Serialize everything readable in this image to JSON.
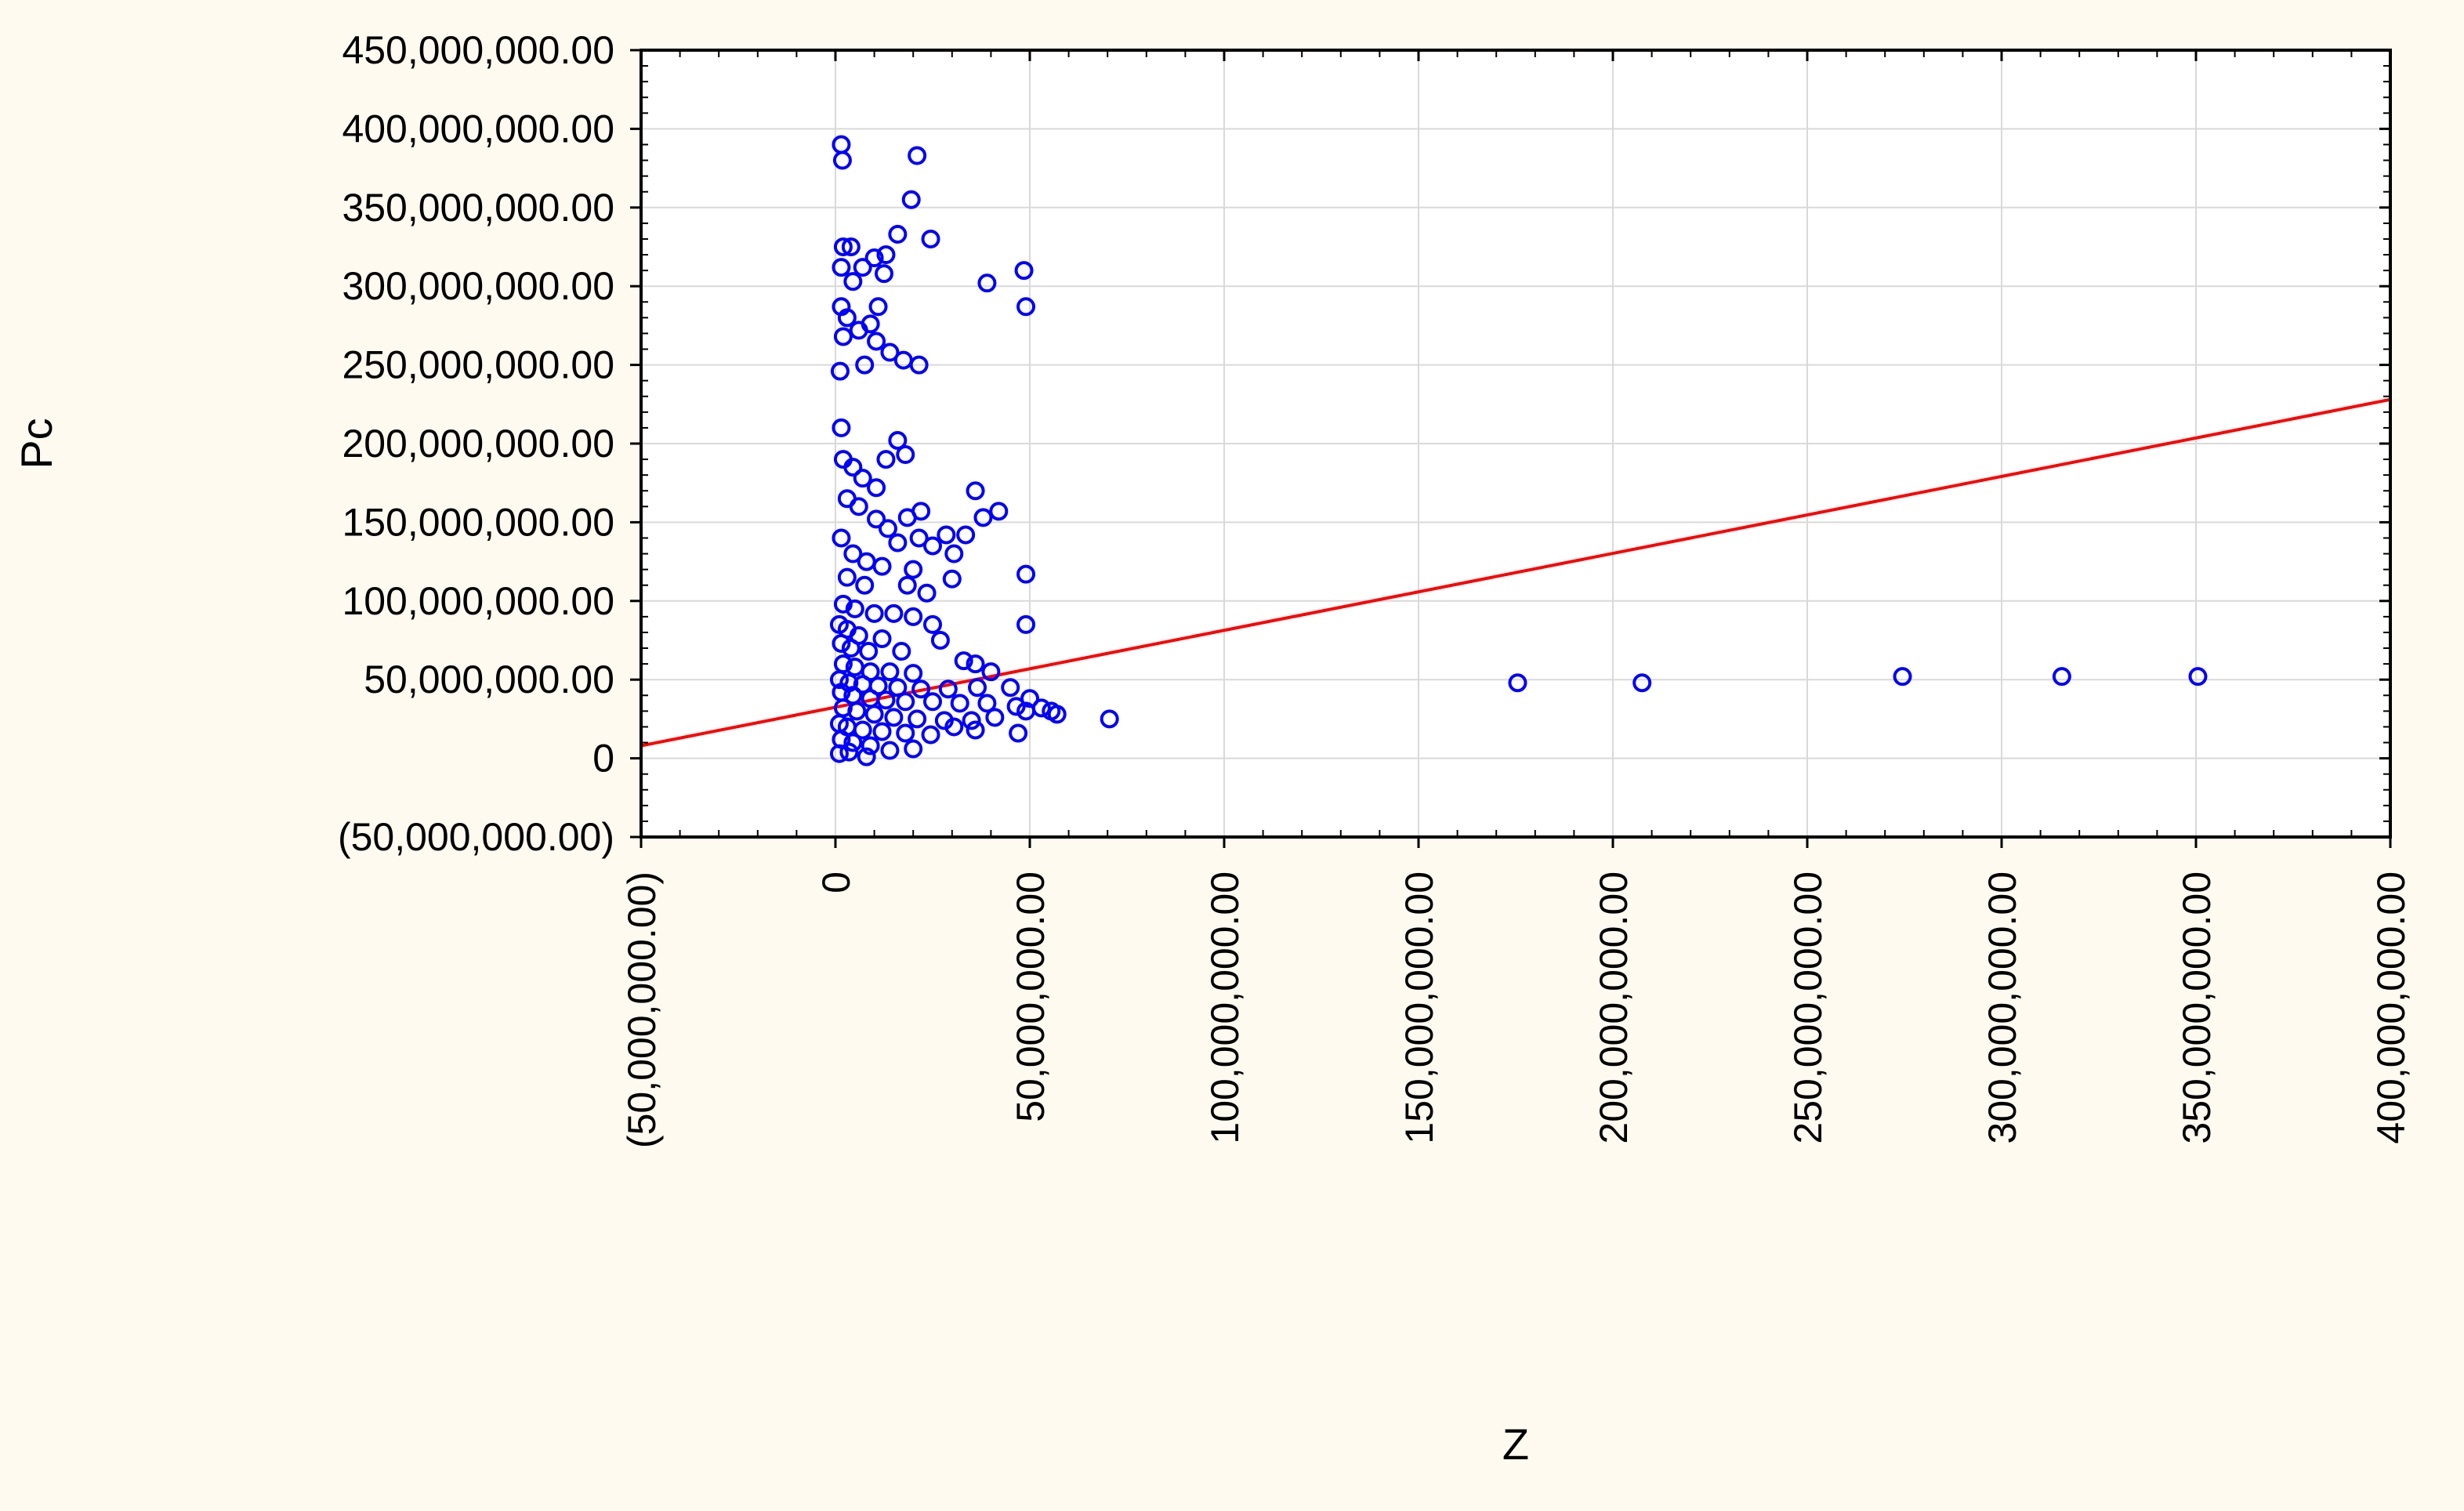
{
  "chart_data": {
    "type": "scatter",
    "title": "",
    "xlabel": "Z",
    "ylabel": "Pc",
    "xlim": [
      -50000000,
      400000000
    ],
    "ylim": [
      -50000000,
      450000000
    ],
    "x_ticks": [
      -50000000,
      0,
      50000000,
      100000000,
      150000000,
      200000000,
      250000000,
      300000000,
      350000000,
      400000000
    ],
    "x_tick_labels": [
      "(50,000,000.00)",
      "0",
      "50,000,000.00",
      "100,000,000.00",
      "150,000,000.00",
      "200,000,000.00",
      "250,000,000.00",
      "300,000,000.00",
      "350,000,000.00",
      "400,000,000.00"
    ],
    "y_ticks": [
      -50000000,
      0,
      50000000,
      100000000,
      150000000,
      200000000,
      250000000,
      300000000,
      350000000,
      400000000,
      450000000
    ],
    "y_tick_labels": [
      "(50,000,000.00)",
      "0",
      "50,000,000.00",
      "100,000,000.00",
      "150,000,000.00",
      "200,000,000.00",
      "250,000,000.00",
      "300,000,000.00",
      "350,000,000.00",
      "400,000,000.00",
      "450,000,000.00"
    ],
    "grid": true,
    "colors": {
      "points": "#0000ff",
      "fit_line": "#ff0000",
      "grid": "#d9d9d9",
      "background": "#fffaf0",
      "plot_background": "#ffffff"
    },
    "series": [
      {
        "kind": "points",
        "points": [
          [
            1500000,
            390000000
          ],
          [
            1800000,
            380000000
          ],
          [
            21000000,
            383000000
          ],
          [
            19500000,
            355000000
          ],
          [
            16000000,
            333000000
          ],
          [
            24500000,
            330000000
          ],
          [
            2000000,
            325000000
          ],
          [
            4000000,
            325000000
          ],
          [
            13000000,
            320000000
          ],
          [
            10000000,
            318000000
          ],
          [
            1500000,
            312000000
          ],
          [
            7000000,
            312000000
          ],
          [
            12500000,
            308000000
          ],
          [
            4500000,
            303000000
          ],
          [
            48500000,
            310000000
          ],
          [
            39000000,
            302000000
          ],
          [
            49000000,
            287000000
          ],
          [
            1500000,
            287000000
          ],
          [
            11000000,
            287000000
          ],
          [
            3000000,
            280000000
          ],
          [
            9000000,
            276000000
          ],
          [
            6000000,
            272000000
          ],
          [
            2000000,
            268000000
          ],
          [
            10500000,
            265000000
          ],
          [
            14000000,
            258000000
          ],
          [
            17500000,
            253000000
          ],
          [
            21500000,
            250000000
          ],
          [
            7500000,
            250000000
          ],
          [
            1200000,
            246000000
          ],
          [
            1500000,
            210000000
          ],
          [
            16000000,
            202000000
          ],
          [
            18000000,
            193000000
          ],
          [
            13000000,
            190000000
          ],
          [
            2000000,
            190000000
          ],
          [
            4500000,
            185000000
          ],
          [
            7000000,
            178000000
          ],
          [
            10500000,
            172000000
          ],
          [
            36000000,
            170000000
          ],
          [
            3000000,
            165000000
          ],
          [
            6000000,
            160000000
          ],
          [
            42000000,
            157000000
          ],
          [
            22000000,
            157000000
          ],
          [
            18500000,
            153000000
          ],
          [
            38000000,
            153000000
          ],
          [
            10500000,
            152000000
          ],
          [
            13500000,
            146000000
          ],
          [
            28500000,
            142000000
          ],
          [
            33500000,
            142000000
          ],
          [
            21500000,
            140000000
          ],
          [
            16000000,
            137000000
          ],
          [
            25000000,
            135000000
          ],
          [
            30500000,
            130000000
          ],
          [
            1500000,
            140000000
          ],
          [
            4500000,
            130000000
          ],
          [
            8000000,
            125000000
          ],
          [
            12000000,
            122000000
          ],
          [
            20000000,
            120000000
          ],
          [
            49000000,
            117000000
          ],
          [
            3000000,
            115000000
          ],
          [
            30000000,
            114000000
          ],
          [
            18500000,
            110000000
          ],
          [
            7500000,
            110000000
          ],
          [
            23500000,
            105000000
          ],
          [
            49000000,
            85000000
          ],
          [
            2000000,
            98000000
          ],
          [
            5000000,
            95000000
          ],
          [
            10000000,
            92000000
          ],
          [
            15000000,
            92000000
          ],
          [
            20000000,
            90000000
          ],
          [
            25000000,
            85000000
          ],
          [
            1000000,
            85000000
          ],
          [
            3000000,
            82000000
          ],
          [
            6000000,
            78000000
          ],
          [
            12000000,
            76000000
          ],
          [
            27000000,
            75000000
          ],
          [
            1500000,
            73000000
          ],
          [
            4000000,
            70000000
          ],
          [
            8500000,
            68000000
          ],
          [
            17000000,
            68000000
          ],
          [
            33000000,
            62000000
          ],
          [
            36000000,
            60000000
          ],
          [
            2000000,
            60000000
          ],
          [
            5000000,
            58000000
          ],
          [
            9000000,
            55000000
          ],
          [
            14000000,
            55000000
          ],
          [
            20000000,
            54000000
          ],
          [
            40000000,
            55000000
          ],
          [
            1000000,
            50000000
          ],
          [
            3500000,
            48000000
          ],
          [
            7000000,
            47000000
          ],
          [
            11000000,
            46000000
          ],
          [
            16000000,
            45000000
          ],
          [
            22000000,
            44000000
          ],
          [
            29000000,
            44000000
          ],
          [
            36500000,
            45000000
          ],
          [
            45000000,
            45000000
          ],
          [
            1500000,
            42000000
          ],
          [
            4500000,
            40000000
          ],
          [
            9000000,
            38000000
          ],
          [
            13000000,
            37000000
          ],
          [
            18000000,
            36000000
          ],
          [
            25000000,
            36000000
          ],
          [
            32000000,
            35000000
          ],
          [
            39000000,
            35000000
          ],
          [
            46500000,
            33000000
          ],
          [
            50000000,
            38000000
          ],
          [
            53000000,
            32000000
          ],
          [
            55500000,
            30000000
          ],
          [
            57000000,
            28000000
          ],
          [
            49000000,
            30000000
          ],
          [
            2000000,
            32000000
          ],
          [
            5500000,
            30000000
          ],
          [
            10000000,
            28000000
          ],
          [
            15000000,
            26000000
          ],
          [
            21000000,
            25000000
          ],
          [
            28000000,
            24000000
          ],
          [
            35000000,
            24000000
          ],
          [
            41000000,
            26000000
          ],
          [
            70500000,
            25000000
          ],
          [
            1000000,
            22000000
          ],
          [
            3000000,
            20000000
          ],
          [
            7000000,
            18000000
          ],
          [
            12000000,
            17000000
          ],
          [
            18000000,
            16000000
          ],
          [
            24500000,
            15000000
          ],
          [
            30500000,
            20000000
          ],
          [
            36000000,
            18000000
          ],
          [
            47000000,
            16000000
          ],
          [
            1500000,
            12000000
          ],
          [
            4500000,
            10000000
          ],
          [
            9000000,
            8000000
          ],
          [
            14000000,
            5000000
          ],
          [
            20000000,
            6000000
          ],
          [
            1000000,
            3000000
          ],
          [
            3500000,
            4000000
          ],
          [
            8000000,
            1000000
          ],
          [
            175500000,
            48000000
          ],
          [
            207500000,
            48000000
          ],
          [
            274500000,
            52000000
          ],
          [
            315500000,
            52000000
          ],
          [
            350500000,
            52000000
          ]
        ]
      },
      {
        "kind": "line",
        "points": [
          [
            -50000000,
            8000000
          ],
          [
            400000000,
            228000000
          ]
        ]
      }
    ]
  }
}
